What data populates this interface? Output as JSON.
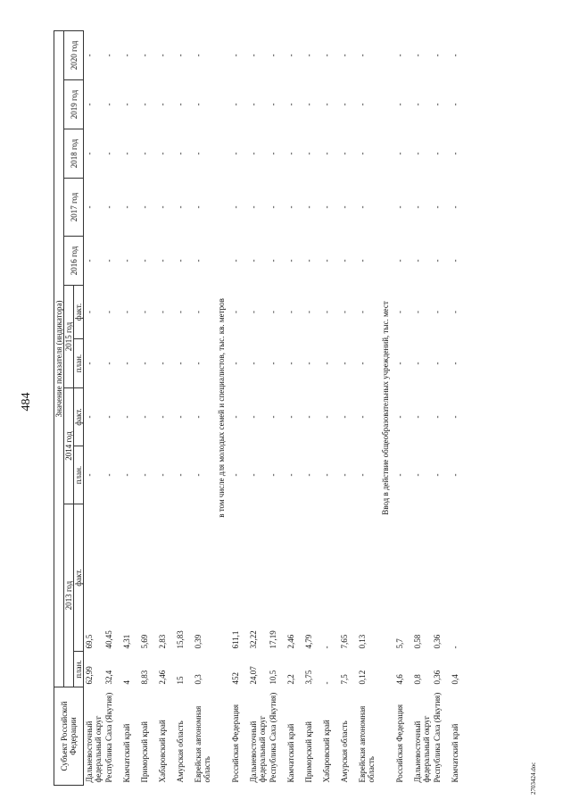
{
  "page_number": "484",
  "table": {
    "subject_header": "Субъект Российской Федерации",
    "group_header": "Значение показателя (индикатора)",
    "years": [
      {
        "label": "2013 год",
        "sub": [
          "план.",
          "факт."
        ]
      },
      {
        "label": "2014 год",
        "sub": [
          "план.",
          "факт."
        ]
      },
      {
        "label": "2015 год",
        "sub": [
          "план.",
          "факт."
        ]
      },
      {
        "label": "2016 год"
      },
      {
        "label": "2017 год"
      },
      {
        "label": "2018 год"
      },
      {
        "label": "2019 год"
      },
      {
        "label": "2020 год"
      }
    ],
    "sections": [
      {
        "rows": [
          [
            "Дальневосточный федеральный округ",
            "62,99",
            "69,5",
            "-",
            "-",
            "-",
            "-",
            "-",
            "-",
            "-",
            "-",
            "-"
          ],
          [
            "Республика Саха (Якутия)",
            "32,4",
            "40,45",
            "-",
            "-",
            "-",
            "-",
            "-",
            "-",
            "-",
            "-",
            "-"
          ],
          [
            "Камчатский край",
            "4",
            "4,31",
            "-",
            "-",
            "-",
            "-",
            "-",
            "-",
            "-",
            "-",
            "-"
          ],
          [
            "Приморский край",
            "8,83",
            "5,69",
            "-",
            "-",
            "-",
            "-",
            "-",
            "-",
            "-",
            "-",
            "-"
          ],
          [
            "Хабаровский край",
            "2,46",
            "2,83",
            "-",
            "-",
            "-",
            "-",
            "-",
            "-",
            "-",
            "-",
            "-"
          ],
          [
            "Амурская область",
            "15",
            "15,83",
            "-",
            "-",
            "-",
            "-",
            "-",
            "-",
            "-",
            "-",
            "-"
          ],
          [
            "Еврейская автономная область",
            "0,3",
            "0,39",
            "-",
            "-",
            "-",
            "-",
            "-",
            "-",
            "-",
            "-",
            "-"
          ]
        ]
      },
      {
        "title": "в том числе для молодых семей и специалистов, тыс. кв. метров",
        "rows": [
          [
            "Российская Федерация",
            "452",
            "611,1",
            "-",
            "-",
            "-",
            "-",
            "-",
            "-",
            "-",
            "-",
            "-"
          ],
          [
            "Дальневосточный федеральный округ",
            "24,07",
            "32,22",
            "-",
            "-",
            "-",
            "-",
            "-",
            "-",
            "-",
            "-",
            "-"
          ],
          [
            "Республика Саха (Якутия)",
            "10,5",
            "17,19",
            "-",
            "-",
            "-",
            "-",
            "-",
            "-",
            "-",
            "-",
            "-"
          ],
          [
            "Камчатский край",
            "2,2",
            "2,46",
            "-",
            "-",
            "-",
            "-",
            "-",
            "-",
            "-",
            "-",
            "-"
          ],
          [
            "Приморский край",
            "3,75",
            "4,79",
            "-",
            "-",
            "-",
            "-",
            "-",
            "-",
            "-",
            "-",
            "-"
          ],
          [
            "Хабаровский край",
            "-",
            "-",
            "-",
            "-",
            "-",
            "-",
            "-",
            "-",
            "-",
            "-",
            "-"
          ],
          [
            "Амурская область",
            "7,5",
            "7,65",
            "-",
            "-",
            "-",
            "-",
            "-",
            "-",
            "-",
            "-",
            "-"
          ],
          [
            "Еврейская автономная область",
            "0,12",
            "0,13",
            "-",
            "-",
            "-",
            "-",
            "-",
            "-",
            "-",
            "-",
            "-"
          ]
        ]
      },
      {
        "title": "Ввод в действие общеобразовательных учреждений, тыс. мест",
        "rows": [
          [
            "Российская Федерация",
            "4,6",
            "5,7",
            "-",
            "-",
            "-",
            "-",
            "-",
            "-",
            "-",
            "-",
            "-"
          ],
          [
            "Дальневосточный федеральный округ",
            "0,8",
            "0,58",
            "-",
            "-",
            "-",
            "-",
            "-",
            "-",
            "-",
            "-",
            "-"
          ],
          [
            "Республика Саха (Якутия)",
            "0,36",
            "0,36",
            "-",
            "-",
            "-",
            "-",
            "-",
            "-",
            "-",
            "-",
            "-"
          ],
          [
            "Камчатский край",
            "0,4",
            "-",
            "-",
            "-",
            "-",
            "-",
            "-",
            "-",
            "-",
            "-",
            "-"
          ]
        ]
      }
    ]
  },
  "footer": "2703424.doc"
}
